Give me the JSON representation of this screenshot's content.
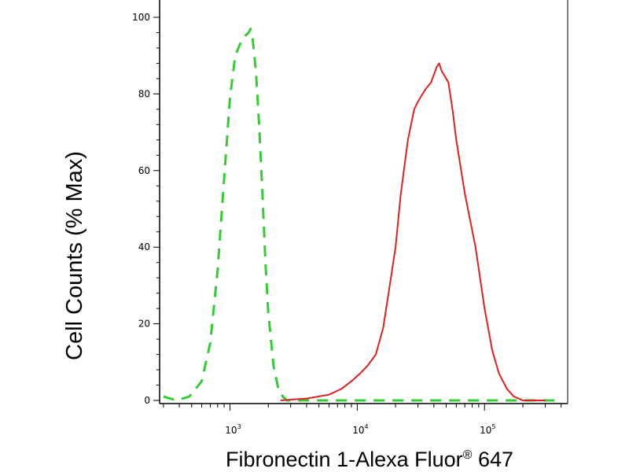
{
  "chart_data": {
    "type": "line",
    "xlabel": "Fibronectin 1-Alexa Fluor",
    "xlabel_superscript": "®",
    "xlabel_suffix": " 647",
    "ylabel": "Cell Counts (% Max)",
    "x_scale": "log",
    "xlim": [
      280,
      450000
    ],
    "ylim": [
      0,
      100
    ],
    "y_ticks": [
      0,
      20,
      40,
      60,
      80,
      100
    ],
    "x_ticks": [
      {
        "value": 1000,
        "base": "10",
        "exp": "3"
      },
      {
        "value": 10000,
        "base": "10",
        "exp": "4"
      },
      {
        "value": 100000,
        "base": "10",
        "exp": "5"
      }
    ],
    "grid": false,
    "series": [
      {
        "style": "dashed",
        "color": "#33cc33",
        "x": [
          300,
          380,
          480,
          600,
          700,
          800,
          900,
          1000,
          1100,
          1200,
          1300,
          1400,
          1450,
          1500,
          1600,
          1700,
          1800,
          1900,
          2000,
          2200,
          2400,
          2600,
          2800,
          3000,
          5000,
          10000,
          50000,
          100000,
          200000,
          400000
        ],
        "y": [
          1,
          0,
          1,
          5,
          15,
          34,
          58,
          79,
          90,
          93,
          95,
          96,
          97,
          95,
          86,
          71,
          54,
          36,
          23,
          9,
          3,
          1,
          0,
          0,
          0,
          0,
          0,
          0,
          0,
          0
        ]
      },
      {
        "style": "solid",
        "color": "#e02020",
        "x": [
          2500,
          4000,
          6000,
          7500,
          9000,
          10500,
          12000,
          14000,
          16000,
          18000,
          20000,
          22000,
          25000,
          28000,
          30000,
          34000,
          38000,
          42000,
          44000,
          46000,
          48000,
          52000,
          56000,
          60000,
          70000,
          85000,
          100000,
          115000,
          130000,
          150000,
          170000,
          200000,
          300000
        ],
        "y": [
          0,
          0.5,
          1.5,
          3,
          5,
          7,
          9,
          12,
          19,
          30,
          40,
          54,
          68,
          76,
          78,
          81,
          83,
          87,
          88,
          86,
          85,
          83,
          76,
          68,
          54,
          40,
          24,
          13,
          7,
          3,
          1,
          0,
          0
        ]
      }
    ]
  }
}
